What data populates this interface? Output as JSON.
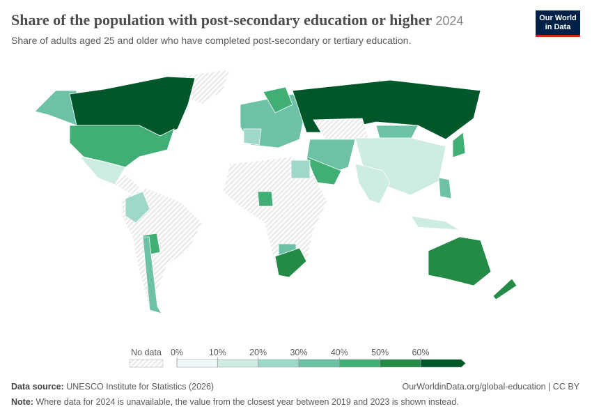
{
  "header": {
    "title": "Share of the population with post-secondary education or higher",
    "year": "2024",
    "subtitle": "Share of adults aged 25 and older who have completed post-secondary or tertiary education."
  },
  "logo": {
    "line1": "Our World",
    "line2": "in Data"
  },
  "legend": {
    "no_data": "No data",
    "ticks": [
      {
        "value": 0,
        "label": "0%"
      },
      {
        "value": 10,
        "label": "10%"
      },
      {
        "value": 20,
        "label": "20%"
      },
      {
        "value": 30,
        "label": "30%"
      },
      {
        "value": 40,
        "label": "40%"
      },
      {
        "value": 50,
        "label": "50%"
      },
      {
        "value": 60,
        "label": "60%"
      }
    ],
    "colors": [
      "#eef8f9",
      "#cdece3",
      "#9fd8c8",
      "#6cc1a6",
      "#41ae76",
      "#238b45",
      "#00582a"
    ]
  },
  "footer": {
    "source_label": "Data source:",
    "source": "UNESCO Institute for Statistics (2026)",
    "url": "OurWorldinData.org/global-education | CC BY",
    "note_label": "Note:",
    "note": "Where data for 2024 is unavailable, the value from the closest year between 2019 and 2023 is shown instead."
  }
}
